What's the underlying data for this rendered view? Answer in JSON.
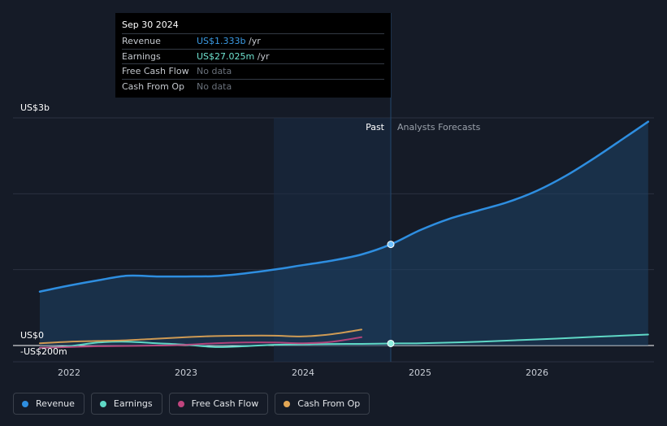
{
  "tooltip": {
    "date": "Sep 30 2024",
    "rows": [
      {
        "label": "Revenue",
        "value": "US$1.333b",
        "unit": " /yr",
        "color": "#3b9ce6"
      },
      {
        "label": "Earnings",
        "value": "US$27.025m",
        "unit": " /yr",
        "color": "#6fe3d0"
      },
      {
        "label": "Free Cash Flow",
        "value": "No data",
        "unit": ""
      },
      {
        "label": "Cash From Op",
        "value": "No data",
        "unit": ""
      }
    ]
  },
  "labels": {
    "past": "Past",
    "forecast": "Analysts Forecasts"
  },
  "legend": [
    {
      "label": "Revenue",
      "color": "#2e8ee0"
    },
    {
      "label": "Earnings",
      "color": "#5fd8c6"
    },
    {
      "label": "Free Cash Flow",
      "color": "#c0457e"
    },
    {
      "label": "Cash From Op",
      "color": "#e2a655"
    }
  ],
  "chart_data": {
    "type": "line",
    "y_unit": "US$ millions",
    "ylim": [
      -200,
      3000
    ],
    "yticks": [
      {
        "value": 3000,
        "label": "US$3b"
      },
      {
        "value": 0,
        "label": "US$0"
      },
      {
        "value": -200,
        "label": "-US$200m"
      }
    ],
    "xlim": [
      2021.7,
      2026.95
    ],
    "xticks": [
      "2022",
      "2023",
      "2024",
      "2025",
      "2026"
    ],
    "past_region_start": 2023.75,
    "present": 2024.75,
    "series": [
      {
        "name": "Revenue",
        "color": "#2e8ee0",
        "points": [
          [
            2021.75,
            710
          ],
          [
            2022.0,
            790
          ],
          [
            2022.25,
            860
          ],
          [
            2022.5,
            920
          ],
          [
            2022.75,
            910
          ],
          [
            2023.0,
            910
          ],
          [
            2023.25,
            915
          ],
          [
            2023.5,
            950
          ],
          [
            2023.75,
            1000
          ],
          [
            2024.0,
            1060
          ],
          [
            2024.25,
            1120
          ],
          [
            2024.5,
            1200
          ],
          [
            2024.75,
            1333
          ],
          [
            2025.0,
            1520
          ],
          [
            2025.25,
            1670
          ],
          [
            2025.5,
            1780
          ],
          [
            2025.75,
            1890
          ],
          [
            2026.0,
            2040
          ],
          [
            2026.25,
            2240
          ],
          [
            2026.5,
            2480
          ],
          [
            2026.75,
            2740
          ],
          [
            2026.95,
            2950
          ]
        ],
        "forecast_from": 2024.75
      },
      {
        "name": "Earnings",
        "color": "#5fd8c6",
        "points": [
          [
            2021.75,
            -30
          ],
          [
            2022.0,
            -10
          ],
          [
            2022.25,
            40
          ],
          [
            2022.5,
            50
          ],
          [
            2022.75,
            30
          ],
          [
            2023.0,
            10
          ],
          [
            2023.25,
            -20
          ],
          [
            2023.5,
            -10
          ],
          [
            2023.75,
            10
          ],
          [
            2024.0,
            15
          ],
          [
            2024.25,
            20
          ],
          [
            2024.5,
            22
          ],
          [
            2024.75,
            27
          ],
          [
            2025.0,
            30
          ],
          [
            2025.5,
            50
          ],
          [
            2026.0,
            80
          ],
          [
            2026.5,
            115
          ],
          [
            2026.95,
            145
          ]
        ],
        "forecast_from": 2024.75
      },
      {
        "name": "Free Cash Flow",
        "color": "#c0457e",
        "points": [
          [
            2021.75,
            -30
          ],
          [
            2022.0,
            -20
          ],
          [
            2022.25,
            -10
          ],
          [
            2022.5,
            -5
          ],
          [
            2022.75,
            0
          ],
          [
            2023.0,
            10
          ],
          [
            2023.25,
            30
          ],
          [
            2023.5,
            40
          ],
          [
            2023.75,
            40
          ],
          [
            2024.0,
            30
          ],
          [
            2024.25,
            50
          ],
          [
            2024.5,
            110
          ]
        ]
      },
      {
        "name": "Cash From Op",
        "color": "#e2a655",
        "points": [
          [
            2021.75,
            30
          ],
          [
            2022.0,
            50
          ],
          [
            2022.25,
            60
          ],
          [
            2022.5,
            70
          ],
          [
            2022.75,
            90
          ],
          [
            2023.0,
            110
          ],
          [
            2023.25,
            125
          ],
          [
            2023.5,
            130
          ],
          [
            2023.75,
            130
          ],
          [
            2024.0,
            120
          ],
          [
            2024.25,
            150
          ],
          [
            2024.5,
            210
          ]
        ]
      }
    ]
  }
}
